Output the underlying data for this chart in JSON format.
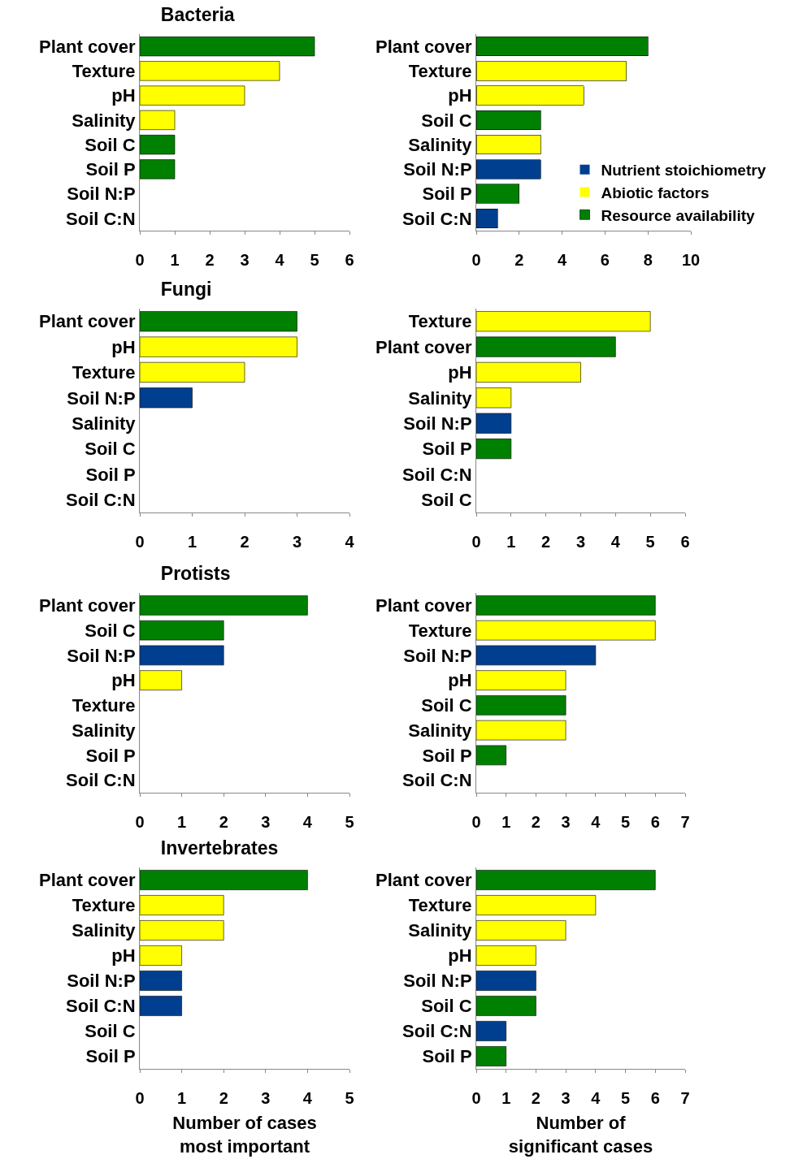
{
  "chart_data": [
    {
      "type": "bar",
      "orientation": "horizontal",
      "title": "Bacteria",
      "categories": [
        "Plant cover",
        "Texture",
        "pH",
        "Salinity",
        "Soil C",
        "Soil P",
        "Soil N:P",
        "Soil C:N"
      ],
      "values": [
        5,
        4,
        3,
        1,
        1,
        1,
        0,
        0
      ],
      "colors": [
        "#008000",
        "#ffff00",
        "#ffff00",
        "#ffff00",
        "#008000",
        "#008000",
        "#003f8f",
        "#003f8f"
      ],
      "xlim": [
        0,
        6
      ],
      "xticks": [
        0,
        1,
        2,
        3,
        4,
        5,
        6
      ]
    },
    {
      "type": "bar",
      "orientation": "horizontal",
      "stacked": true,
      "legend": "bottom right",
      "categories": [
        "Plant cover",
        "Texture",
        "pH",
        "Soil C",
        "Salinity",
        "Soil N:P",
        "Soil P",
        "Soil C:N"
      ],
      "series": [
        {
          "name": "Nutrient stoichiometry",
          "color": "#003f8f",
          "values": [
            null,
            null,
            null,
            null,
            null,
            3,
            null,
            1
          ]
        },
        {
          "name": "Abiotic factors",
          "color": "#ffff00",
          "values": [
            null,
            7,
            5,
            null,
            3,
            null,
            null,
            null
          ]
        },
        {
          "name": "Resource availability",
          "color": "#008000",
          "values": [
            8,
            null,
            null,
            3,
            null,
            null,
            2,
            null
          ]
        }
      ],
      "xlim": [
        0,
        10
      ],
      "xticks": [
        0,
        2,
        4,
        6,
        8,
        10
      ]
    },
    {
      "type": "bar",
      "orientation": "horizontal",
      "title": "Fungi",
      "categories": [
        "Plant cover",
        "pH",
        "Texture",
        "Soil N:P",
        "Salinity",
        "Soil C",
        "Soil P",
        "Soil C:N"
      ],
      "values": [
        3,
        3,
        2,
        1,
        0,
        0,
        0,
        0
      ],
      "colors": [
        "#008000",
        "#ffff00",
        "#ffff00",
        "#003f8f",
        "#ffff00",
        "#008000",
        "#008000",
        "#003f8f"
      ],
      "xlim": [
        0,
        4
      ],
      "xticks": [
        0,
        1,
        2,
        3,
        4
      ]
    },
    {
      "type": "bar",
      "orientation": "horizontal",
      "categories": [
        "Texture",
        "Plant cover",
        "pH",
        "Salinity",
        "Soil N:P",
        "Soil P",
        "Soil C:N",
        "Soil C"
      ],
      "values": [
        5,
        4,
        3,
        1,
        1,
        1,
        0,
        0
      ],
      "colors": [
        "#ffff00",
        "#008000",
        "#ffff00",
        "#ffff00",
        "#003f8f",
        "#008000",
        "#003f8f",
        "#008000"
      ],
      "xlim": [
        0,
        6
      ],
      "xticks": [
        0,
        1,
        2,
        3,
        4,
        5,
        6
      ]
    },
    {
      "type": "bar",
      "orientation": "horizontal",
      "title": "Protists",
      "categories": [
        "Plant cover",
        "Soil C",
        "Soil N:P",
        "pH",
        "Texture",
        "Salinity",
        "Soil P",
        "Soil C:N"
      ],
      "values": [
        4,
        2,
        2,
        1,
        0,
        0,
        0,
        0
      ],
      "colors": [
        "#008000",
        "#008000",
        "#003f8f",
        "#ffff00",
        "#ffff00",
        "#ffff00",
        "#008000",
        "#003f8f"
      ],
      "xlim": [
        0,
        5
      ],
      "xticks": [
        0,
        1,
        2,
        3,
        4,
        5
      ]
    },
    {
      "type": "bar",
      "orientation": "horizontal",
      "categories": [
        "Plant cover",
        "Texture",
        "Soil N:P",
        "pH",
        "Soil C",
        "Salinity",
        "Soil P",
        "Soil C:N"
      ],
      "values": [
        6,
        6,
        4,
        3,
        3,
        3,
        1,
        0
      ],
      "colors": [
        "#008000",
        "#ffff00",
        "#003f8f",
        "#ffff00",
        "#008000",
        "#ffff00",
        "#008000",
        "#003f8f"
      ],
      "xlim": [
        0,
        7
      ],
      "xticks": [
        0,
        1,
        2,
        3,
        4,
        5,
        6,
        7
      ]
    },
    {
      "type": "bar",
      "orientation": "horizontal",
      "title": "Invertebrates",
      "xlabel": "Number of cases\nmost important",
      "categories": [
        "Plant cover",
        "Texture",
        "Salinity",
        "pH",
        "Soil N:P",
        "Soil C:N",
        "Soil C",
        "Soil P"
      ],
      "values": [
        4,
        2,
        2,
        1,
        1,
        1,
        0,
        0
      ],
      "colors": [
        "#008000",
        "#ffff00",
        "#ffff00",
        "#ffff00",
        "#003f8f",
        "#003f8f",
        "#008000",
        "#008000"
      ],
      "xlim": [
        0,
        5
      ],
      "xticks": [
        0,
        1,
        2,
        3,
        4,
        5
      ]
    },
    {
      "type": "bar",
      "orientation": "horizontal",
      "xlabel": "Number of\nsignificant cases",
      "categories": [
        "Plant cover",
        "Texture",
        "Salinity",
        "pH",
        "Soil N:P",
        "Soil C",
        "Soil C:N",
        "Soil P"
      ],
      "values": [
        6,
        4,
        3,
        2,
        2,
        2,
        1,
        1
      ],
      "colors": [
        "#008000",
        "#ffff00",
        "#ffff00",
        "#ffff00",
        "#003f8f",
        "#008000",
        "#003f8f",
        "#008000"
      ],
      "xlim": [
        0,
        7
      ],
      "xticks": [
        0,
        1,
        2,
        3,
        4,
        5,
        6,
        7
      ]
    }
  ]
}
